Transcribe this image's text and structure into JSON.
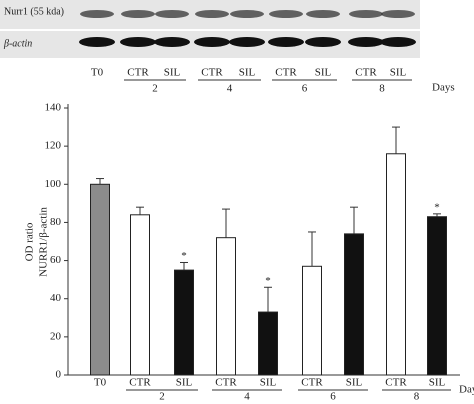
{
  "blot": {
    "rows": [
      "Nurr1 (55 kda)",
      "β-actin"
    ],
    "lanes": [
      "T0",
      "CTR",
      "SIL",
      "CTR",
      "SIL",
      "CTR",
      "SIL",
      "CTR",
      "SIL"
    ],
    "groups": [
      "2",
      "4",
      "6",
      "8"
    ],
    "unit": "Days"
  },
  "chart_data": {
    "type": "bar",
    "ylabel": [
      "OD ratio",
      "NURR1/β-actin"
    ],
    "categories": [
      "T0",
      "CTR",
      "SIL",
      "CTR",
      "SIL",
      "CTR",
      "SIL",
      "CTR",
      "SIL"
    ],
    "groups": [
      "2",
      "4",
      "6",
      "8"
    ],
    "xlabel": "Days",
    "series": [
      {
        "values": [
          100,
          84,
          55,
          72,
          33,
          57,
          74,
          116,
          83
        ],
        "errors": [
          3,
          4,
          4,
          15,
          13,
          18,
          14,
          14,
          1.5
        ],
        "colors": [
          "#8c8c8c",
          "#ffffff",
          "#111111",
          "#ffffff",
          "#111111",
          "#ffffff",
          "#111111",
          "#ffffff",
          "#111111"
        ],
        "markers": [
          null,
          null,
          "*",
          null,
          "*",
          null,
          null,
          null,
          "*"
        ]
      }
    ],
    "ylim": [
      0,
      140
    ],
    "yticks": [
      0,
      20,
      40,
      60,
      80,
      100,
      120,
      140
    ]
  }
}
